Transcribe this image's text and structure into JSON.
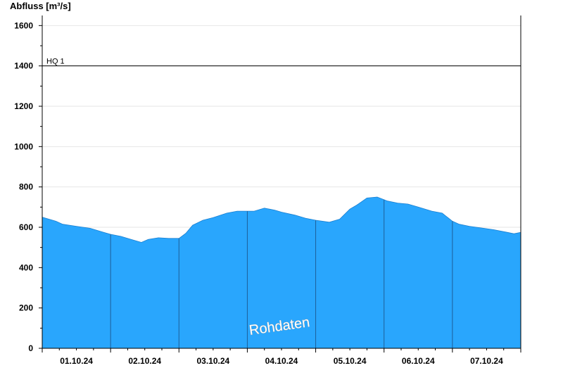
{
  "chart_data": {
    "type": "area",
    "ylabel": "Abfluss [m³/s]",
    "ylim": [
      0,
      1650
    ],
    "yticks": [
      0,
      200,
      400,
      600,
      800,
      1000,
      1200,
      1400,
      1600
    ],
    "xlim": [
      0,
      7
    ],
    "day_labels": [
      "01.10.24",
      "02.10.24",
      "03.10.24",
      "04.10.24",
      "05.10.24",
      "06.10.24",
      "07.10.24"
    ],
    "grid": true,
    "fill_color": "#29a6fd",
    "reference_lines": [
      {
        "label": "HQ 1",
        "value": 1400
      }
    ],
    "watermark": "Rohdaten",
    "series": [
      {
        "x": [
          0,
          0.1,
          0.2,
          0.3,
          0.5,
          0.7,
          0.9,
          1.0,
          1.15,
          1.3,
          1.45,
          1.55,
          1.7,
          1.85,
          2.0,
          2.1,
          2.2,
          2.35,
          2.5,
          2.7,
          2.85,
          3.0,
          3.1,
          3.25,
          3.4,
          3.5,
          3.7,
          3.85,
          4.0,
          4.2,
          4.35,
          4.5,
          4.6,
          4.75,
          4.9,
          5.05,
          5.2,
          5.35,
          5.5,
          5.7,
          5.85,
          6.0,
          6.1,
          6.25,
          6.4,
          6.6,
          6.8,
          6.9,
          7.0
        ],
        "y": [
          650,
          640,
          630,
          615,
          605,
          595,
          575,
          565,
          555,
          540,
          525,
          540,
          548,
          545,
          545,
          570,
          610,
          635,
          648,
          670,
          680,
          680,
          680,
          695,
          685,
          675,
          660,
          645,
          635,
          625,
          640,
          690,
          710,
          745,
          750,
          730,
          720,
          715,
          700,
          680,
          670,
          630,
          615,
          605,
          598,
          588,
          575,
          568,
          575
        ]
      }
    ]
  }
}
